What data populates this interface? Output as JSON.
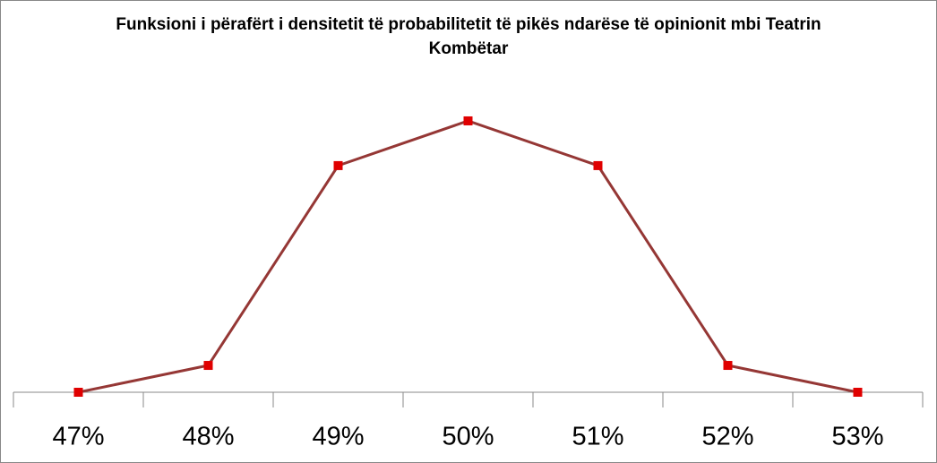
{
  "chart_data": {
    "type": "line",
    "title": "Funksioni i përafërt i densitetit të probabilitetit të pikës ndarëse të opinionit mbi Teatrin Kombëtar",
    "categories": [
      "47%",
      "48%",
      "49%",
      "50%",
      "51%",
      "52%",
      "53%"
    ],
    "series": [
      {
        "color": "#953735",
        "marker_color": "#e00000",
        "values": [
          0,
          0.09,
          0.76,
          0.91,
          0.76,
          0.09,
          0
        ]
      }
    ],
    "ylim": [
      0,
      1
    ]
  }
}
